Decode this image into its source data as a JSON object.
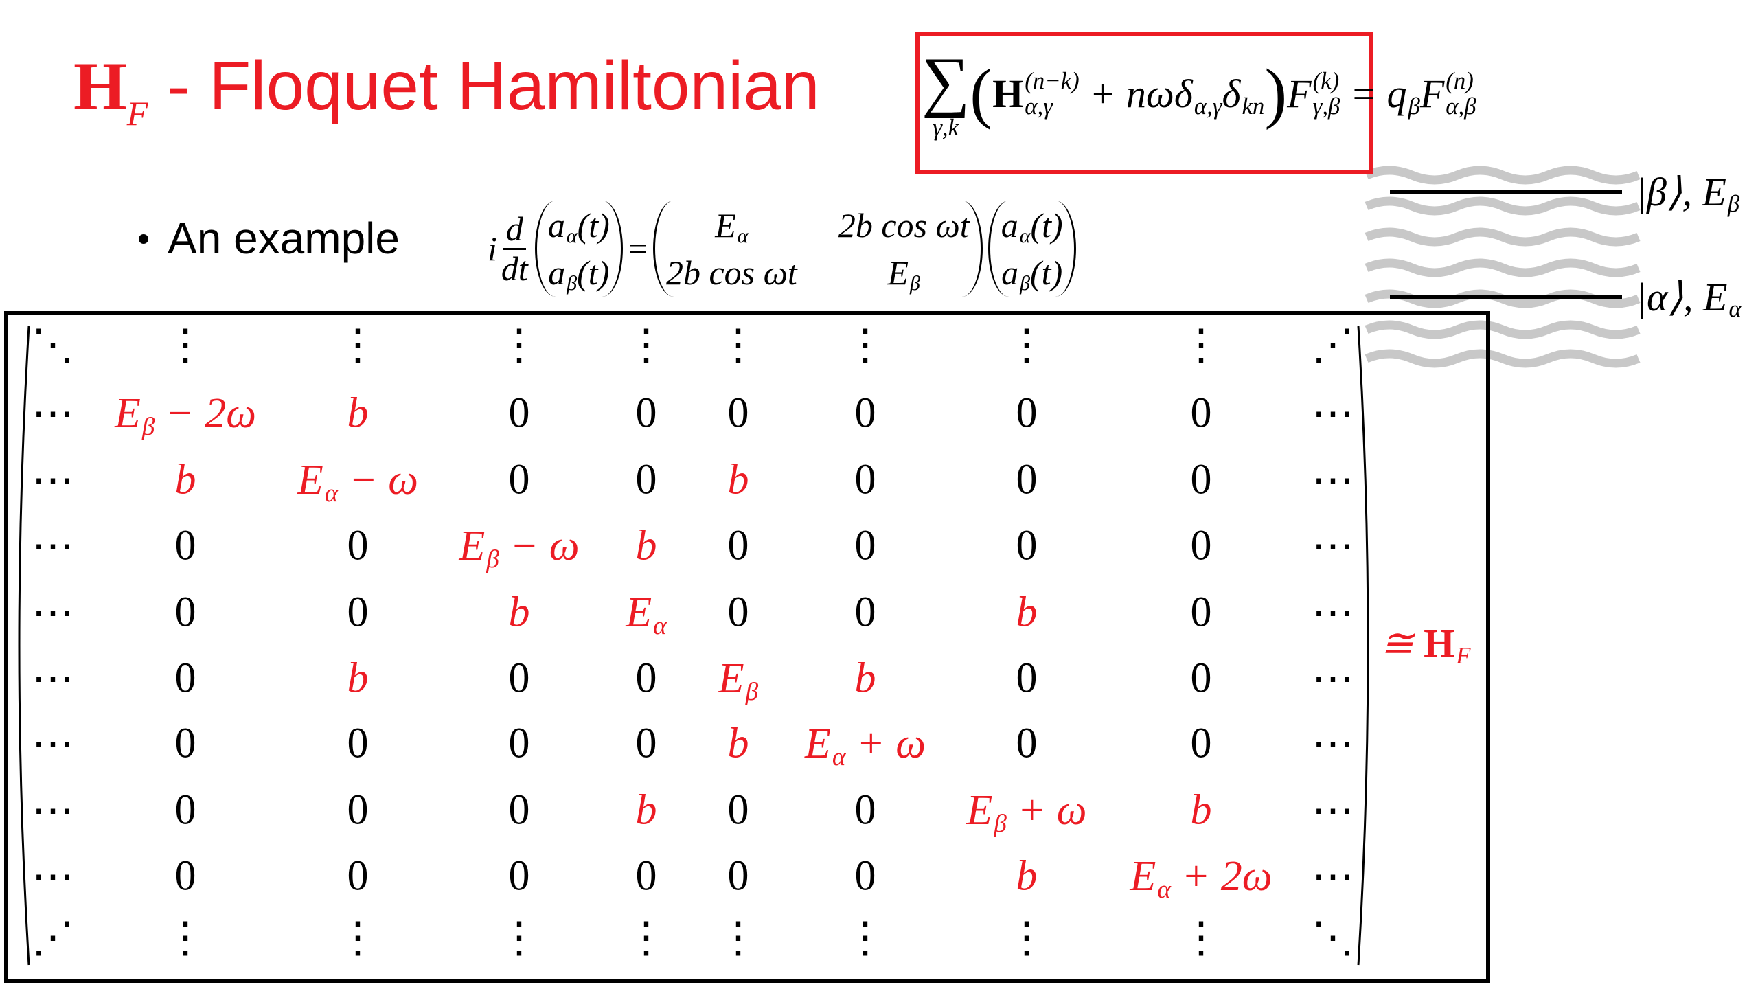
{
  "title": {
    "symbol": "H",
    "symbol_sub": "F",
    "text": "- Floquet Hamiltonian"
  },
  "floquet_equation": [
    {
      "text": "∑",
      "under": "γ,k",
      "size": "large"
    },
    {
      "text": "(",
      "size": "large"
    },
    {
      "text": "H",
      "bold": true,
      "sup": "(n−k)",
      "sub": "α,γ"
    },
    {
      "text": " + nωδ",
      "sub": "α,γ"
    },
    {
      "text": "δ",
      "sub": "kn"
    },
    {
      "text": ")",
      "size": "large"
    },
    {
      "text": "F",
      "sup": "(k)",
      "sub": "γ,β"
    },
    {
      "text": " = q",
      "sub": "β"
    },
    {
      "text": "F",
      "sup": "(n)",
      "sub": "α,β"
    }
  ],
  "bullet": "An example",
  "schrodinger": {
    "prefix": "i",
    "fraction": {
      "num": "d",
      "den": "dt"
    },
    "lhs_vector": [
      {
        "text": "a",
        "sub": "α",
        "tail": "(t)"
      },
      {
        "text": "a",
        "sub": "β",
        "tail": "(t)"
      }
    ],
    "equals": "=",
    "matrix": [
      [
        {
          "text": "E",
          "sub": "α"
        },
        "2b cos ωt"
      ],
      [
        "2b cos ωt",
        {
          "text": "E",
          "sub": "β"
        }
      ]
    ],
    "rhs_vector": [
      {
        "text": "a",
        "sub": "α",
        "tail": "(t)"
      },
      {
        "text": "a",
        "sub": "β",
        "tail": "(t)"
      }
    ]
  },
  "levels": [
    {
      "text": "|β⟩, E",
      "sub": "β"
    },
    {
      "text": "|α⟩, E",
      "sub": "α"
    }
  ],
  "matrix": {
    "rows": [
      [
        "⋱",
        "⋮",
        "⋮",
        "⋮",
        "⋮",
        "⋮",
        "⋮",
        "⋮",
        "⋮",
        "⋰"
      ],
      [
        "⋯",
        {
          "text": "E",
          "sub": "β",
          "tail": " − 2ω"
        },
        {
          "text": "b"
        },
        "0",
        "0",
        "0",
        "0",
        "0",
        "0",
        "⋯"
      ],
      [
        "⋯",
        {
          "text": "b"
        },
        {
          "text": "E",
          "sub": "α",
          "tail": " − ω"
        },
        "0",
        "0",
        {
          "text": "b"
        },
        "0",
        "0",
        "0",
        "⋯"
      ],
      [
        "⋯",
        "0",
        "0",
        {
          "text": "E",
          "sub": "β",
          "tail": " − ω"
        },
        {
          "text": "b"
        },
        "0",
        "0",
        "0",
        "0",
        "⋯"
      ],
      [
        "⋯",
        "0",
        "0",
        {
          "text": "b"
        },
        {
          "text": "E",
          "sub": "α"
        },
        "0",
        "0",
        {
          "text": "b"
        },
        "0",
        "⋯"
      ],
      [
        "⋯",
        "0",
        {
          "text": "b"
        },
        "0",
        "0",
        {
          "text": "E",
          "sub": "β"
        },
        {
          "text": "b"
        },
        "0",
        "0",
        "⋯"
      ],
      [
        "⋯",
        "0",
        "0",
        "0",
        "0",
        {
          "text": "b"
        },
        {
          "text": "E",
          "sub": "α",
          "tail": " + ω"
        },
        "0",
        "0",
        "⋯"
      ],
      [
        "⋯",
        "0",
        "0",
        "0",
        {
          "text": "b"
        },
        "0",
        "0",
        {
          "text": "E",
          "sub": "β",
          "tail": " + ω"
        },
        {
          "text": "b"
        },
        "⋯"
      ],
      [
        "⋯",
        "0",
        "0",
        "0",
        "0",
        "0",
        "0",
        {
          "text": "b"
        },
        {
          "text": "E",
          "sub": "α",
          "tail": " + 2ω"
        },
        "⋯"
      ],
      [
        "⋰",
        "⋮",
        "⋮",
        "⋮",
        "⋮",
        "⋮",
        "⋮",
        "⋮",
        "⋮",
        "⋱"
      ]
    ]
  },
  "hf_label": {
    "prefix": "≅ ",
    "text": "H",
    "bold": true,
    "sub": "F"
  }
}
